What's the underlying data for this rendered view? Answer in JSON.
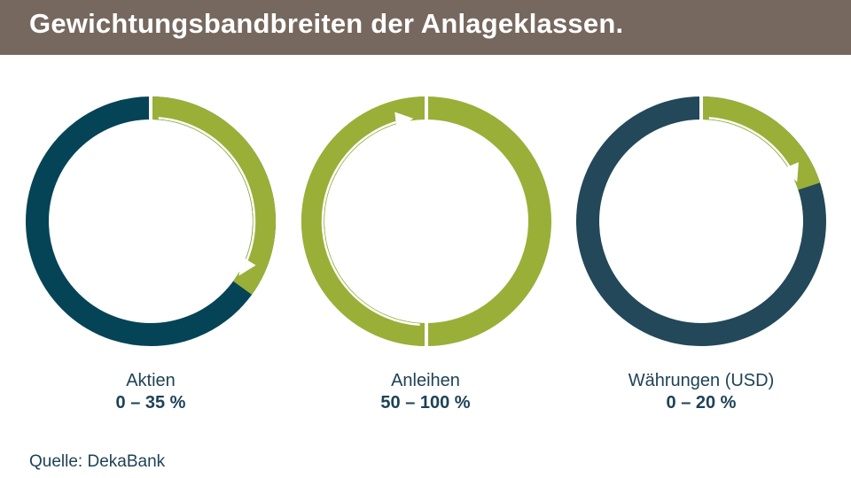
{
  "title": "Gewichtungsbandbreiten der Anlageklassen.",
  "source": "Quelle: DekaBank",
  "colors": {
    "header_bg": "#76685f",
    "header_text": "#ffffff",
    "green": "#9aaf38",
    "dark_teal": "#044456",
    "dark_slate": "#22485a",
    "text": "#1e4256",
    "arrow": "#ffffff"
  },
  "chart_data": [
    {
      "type": "pie",
      "label": "Aktien",
      "range_label": "0 – 35 %",
      "min_percent": 0,
      "max_percent": 35,
      "band_color": "#9aaf38",
      "rest_color": "#044456",
      "arrow_direction": "clockwise"
    },
    {
      "type": "pie",
      "label": "Anleihen",
      "range_label": "50 – 100 %",
      "min_percent": 50,
      "max_percent": 100,
      "band_color": "#9aaf38",
      "rest_color": "#9aaf38",
      "arrow_direction": "clockwise"
    },
    {
      "type": "pie",
      "label": "Währungen (USD)",
      "range_label": "0 – 20 %",
      "min_percent": 0,
      "max_percent": 20,
      "band_color": "#9aaf38",
      "rest_color": "#22485a",
      "arrow_direction": "clockwise"
    }
  ]
}
